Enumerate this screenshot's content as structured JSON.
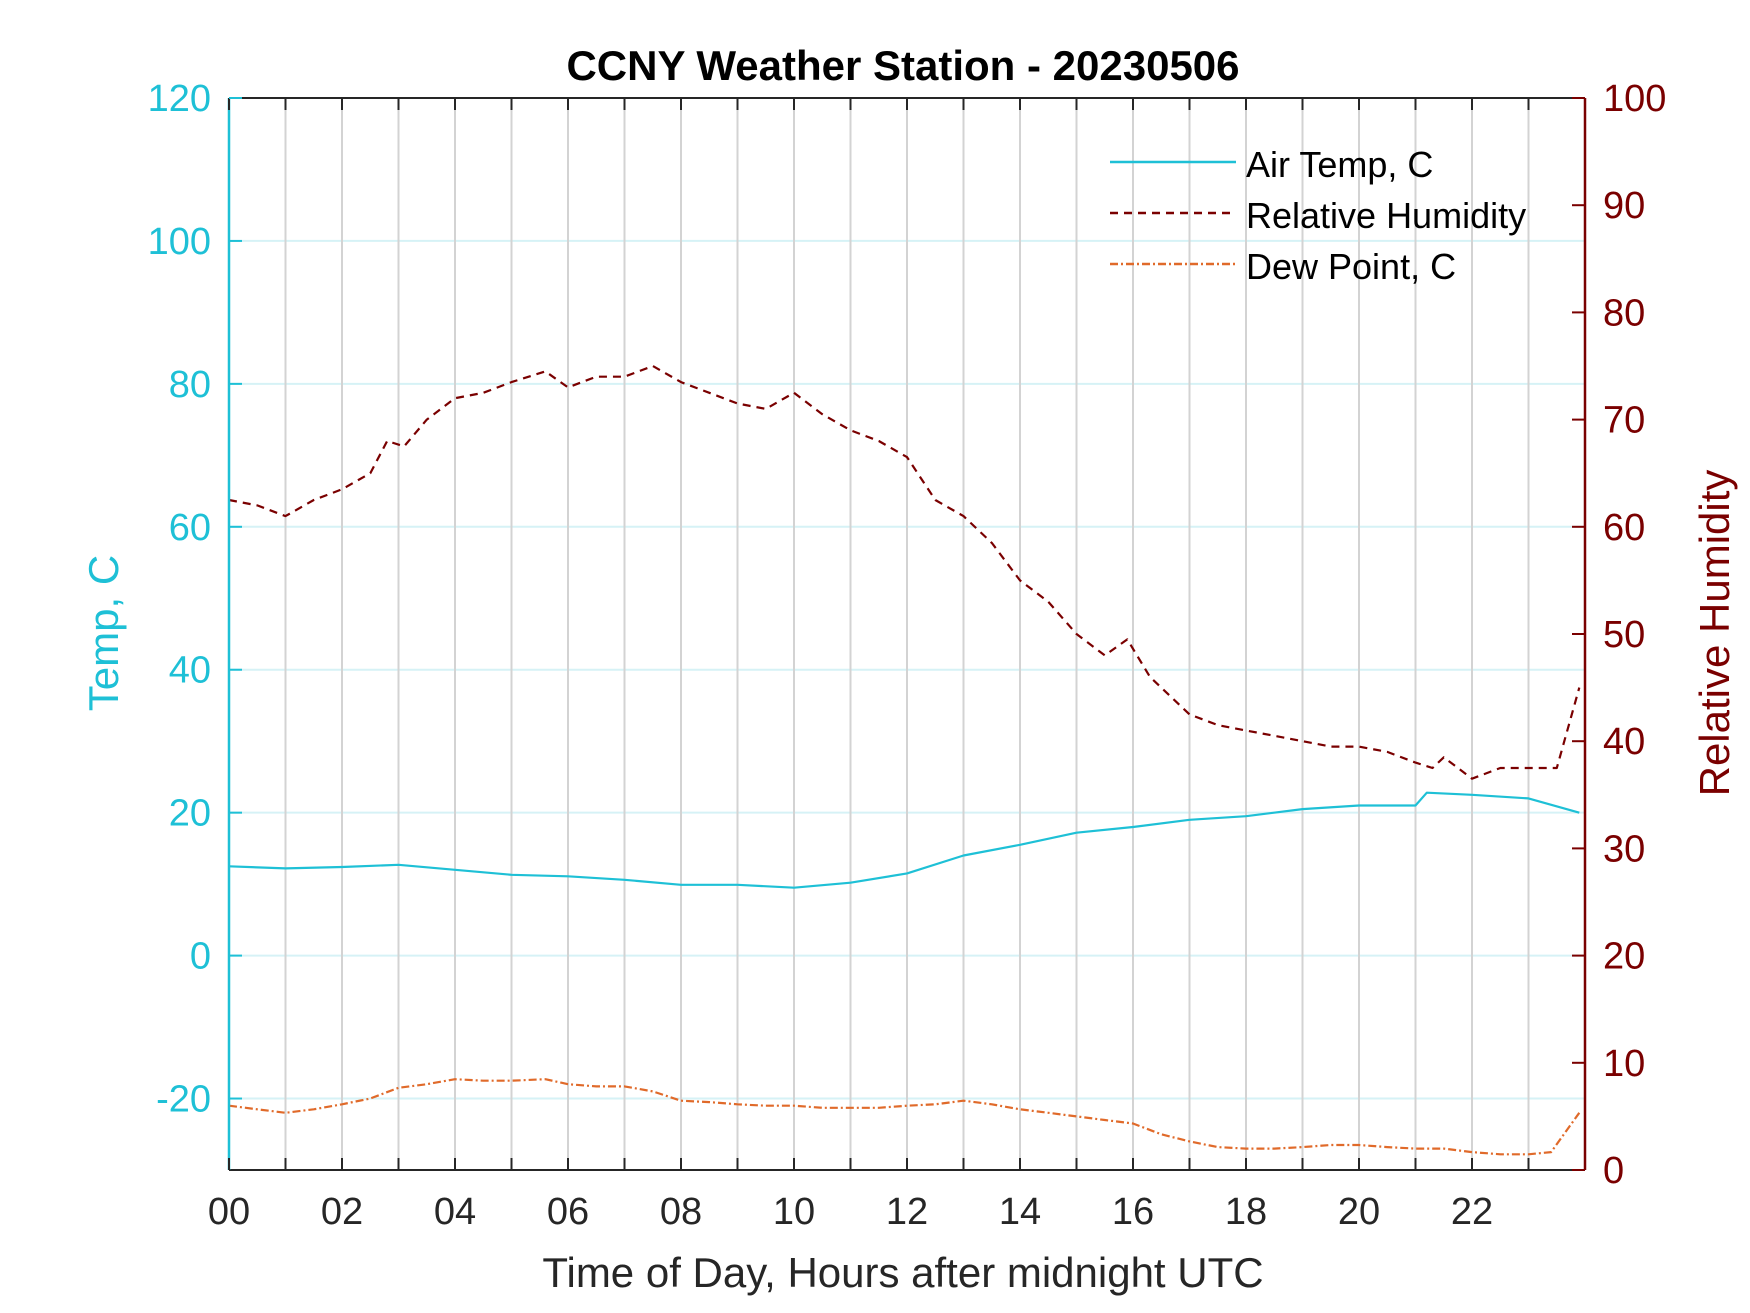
{
  "chart_data": {
    "type": "line",
    "title": "CCNY Weather Station - 20230506",
    "xlabel": "Time of Day, Hours after midnight UTC",
    "ylabel_left": "Temp, C",
    "ylabel_right": "Relative Humidity",
    "xlim": [
      0,
      24
    ],
    "ylim_left": [
      -30,
      120
    ],
    "ylim_right": [
      0,
      100
    ],
    "x_tick_values": [
      0,
      2,
      4,
      6,
      8,
      10,
      12,
      14,
      16,
      18,
      20,
      22
    ],
    "x_tick_labels": [
      "00",
      "02",
      "04",
      "06",
      "08",
      "10",
      "12",
      "14",
      "16",
      "18",
      "20",
      "22"
    ],
    "y_left_ticks": [
      -20,
      0,
      20,
      40,
      60,
      80,
      100,
      120
    ],
    "y_left_tick_labels": [
      "-20",
      "0",
      "20",
      "40",
      "60",
      "80",
      "100",
      "120"
    ],
    "y_right_ticks": [
      0,
      10,
      20,
      30,
      40,
      50,
      60,
      70,
      80,
      90,
      100
    ],
    "y_right_tick_labels": [
      "0",
      "10",
      "20",
      "30",
      "40",
      "50",
      "60",
      "70",
      "80",
      "90",
      "100"
    ],
    "grid": "vertical every hour, horizontal at left-axis ticks",
    "legend_position": "top-right",
    "colors": {
      "air_temp": "#1ec0d6",
      "relative_humidity": "#7a0000",
      "dew_point": "#e06a2a",
      "left_axis": "#1ec0d6",
      "right_axis": "#7a0000",
      "grid_vertical": "#d3d3d3",
      "grid_horizontal": "#d6f2f6"
    },
    "series": [
      {
        "name": "Air Temp, C",
        "axis": "left",
        "style": "solid",
        "x": [
          0,
          1,
          2,
          3,
          4,
          5,
          6,
          7,
          8,
          9,
          10,
          11,
          12,
          13,
          14,
          15,
          16,
          17,
          18,
          19,
          20,
          21,
          21.2,
          22,
          23,
          23.9
        ],
        "values": [
          12.5,
          12.2,
          12.4,
          12.7,
          12,
          11.3,
          11.1,
          10.6,
          9.9,
          9.9,
          9.5,
          10.2,
          11.5,
          14,
          15.5,
          17.2,
          18,
          19,
          19.5,
          20.5,
          21,
          21,
          22.8,
          22.5,
          22,
          20
        ]
      },
      {
        "name": "Relative Humidity",
        "axis": "right",
        "style": "dashed",
        "x": [
          0,
          0.5,
          1,
          1.5,
          2,
          2.5,
          2.8,
          3.1,
          3.5,
          4,
          4.5,
          5,
          5.6,
          6,
          6.5,
          7,
          7.5,
          8,
          8.5,
          9,
          9.5,
          10,
          10.5,
          11,
          11.5,
          12,
          12.5,
          13,
          13.5,
          14,
          14.5,
          15,
          15.5,
          15.9,
          16.3,
          16.7,
          17,
          17.5,
          18,
          18.5,
          19,
          19.5,
          20,
          20.5,
          21,
          21.3,
          21.5,
          22,
          22.5,
          23,
          23.5,
          23.9
        ],
        "values": [
          62.5,
          62,
          61,
          62.5,
          63.5,
          65,
          68,
          67.5,
          70,
          72,
          72.5,
          73.5,
          74.5,
          73,
          74,
          74,
          75,
          73.5,
          72.5,
          71.5,
          71,
          72.5,
          70.5,
          69,
          68,
          66.5,
          62.5,
          61,
          58.5,
          55,
          53,
          50,
          48,
          49.5,
          46,
          44,
          42.5,
          41.5,
          41,
          40.5,
          40,
          39.5,
          39.5,
          39,
          38,
          37.5,
          38.5,
          36.5,
          37.5,
          37.5,
          37.5,
          45
        ]
      },
      {
        "name": "Dew Point, C",
        "axis": "left",
        "style": "dash-dot",
        "x": [
          0,
          0.5,
          1,
          1.5,
          2,
          2.5,
          3,
          3.5,
          4,
          4.5,
          5,
          5.6,
          6,
          6.5,
          7,
          7.5,
          8,
          8.5,
          9,
          9.5,
          10,
          10.5,
          11,
          11.5,
          12,
          12.5,
          13,
          13.5,
          14,
          14.5,
          15,
          15.5,
          16,
          16.5,
          17,
          17.5,
          18,
          18.5,
          19,
          19.5,
          20,
          20.5,
          21,
          21.5,
          22,
          22.5,
          23,
          23.4,
          23.9
        ],
        "values": [
          -21,
          -21.5,
          -22,
          -21.5,
          -20.8,
          -20,
          -18.5,
          -18,
          -17.3,
          -17.5,
          -17.5,
          -17.3,
          -18,
          -18.3,
          -18.3,
          -19,
          -20.3,
          -20.5,
          -20.8,
          -21,
          -21,
          -21.3,
          -21.3,
          -21.3,
          -21,
          -20.8,
          -20.3,
          -20.8,
          -21.5,
          -22,
          -22.5,
          -23,
          -23.5,
          -25,
          -26,
          -26.8,
          -27,
          -27,
          -26.8,
          -26.5,
          -26.5,
          -26.8,
          -27,
          -27,
          -27.5,
          -27.8,
          -27.8,
          -27.5,
          -22
        ]
      }
    ]
  }
}
